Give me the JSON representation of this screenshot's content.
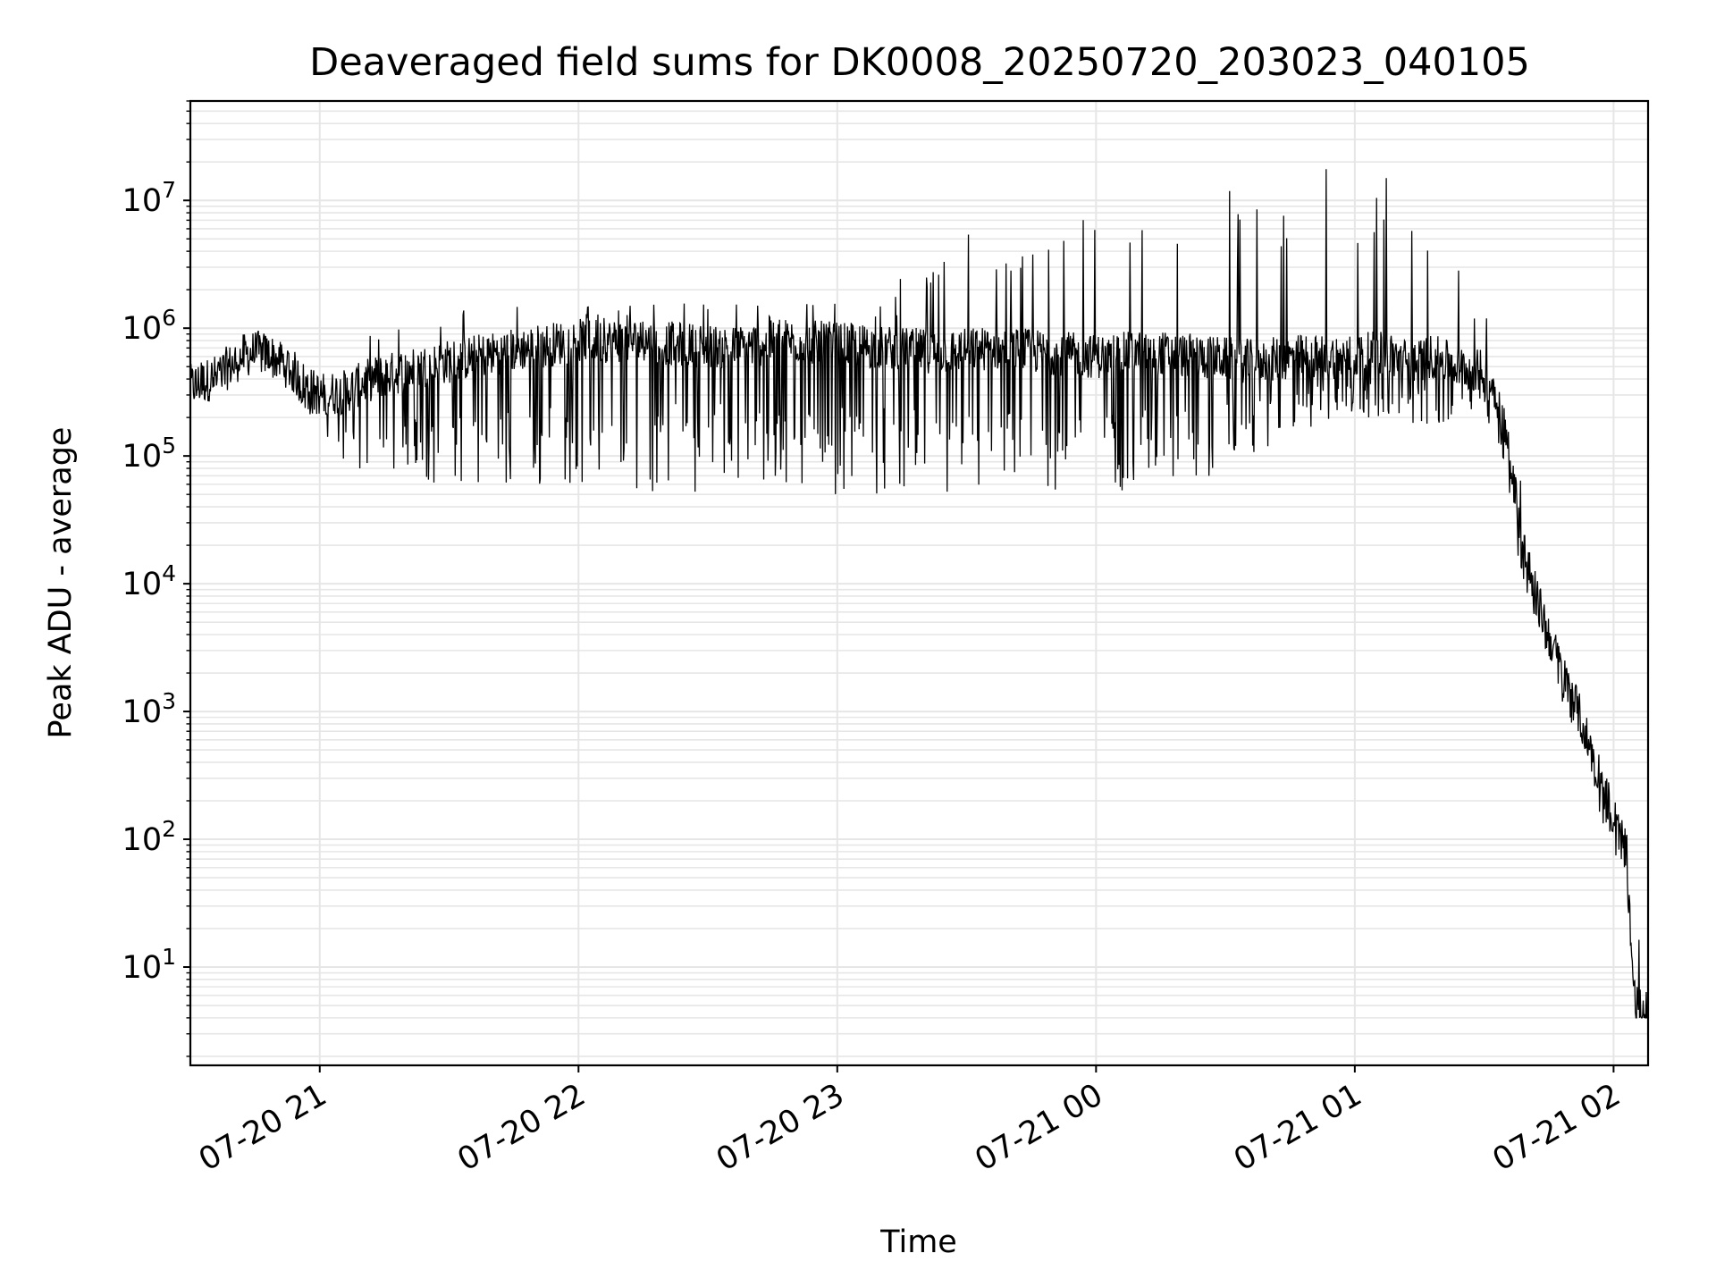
{
  "chart_data": {
    "type": "line",
    "title": "Deaveraged field sums for DK0008_20250720_203023_040105",
    "xlabel": "Time",
    "ylabel": "Peak ADU - average",
    "yscale": "log",
    "xlim": [
      "07-20 20:30",
      "07-21 02:08"
    ],
    "ylim": [
      1.7,
      60000000
    ],
    "grid": true,
    "legend": "none",
    "line_color": "#000000",
    "grid_color": "#e6e6e6",
    "x_ticks": [
      {
        "value": "07-20 21:00",
        "label": "07-20 21"
      },
      {
        "value": "07-20 22:00",
        "label": "07-20 22"
      },
      {
        "value": "07-20 23:00",
        "label": "07-20 23"
      },
      {
        "value": "07-21 00:00",
        "label": "07-21 00"
      },
      {
        "value": "07-21 01:00",
        "label": "07-21 01"
      },
      {
        "value": "07-21 02:00",
        "label": "07-21 02"
      }
    ],
    "y_ticks": [
      {
        "value": 10,
        "base": "10",
        "exp": "1"
      },
      {
        "value": 100,
        "base": "10",
        "exp": "2"
      },
      {
        "value": 1000,
        "base": "10",
        "exp": "3"
      },
      {
        "value": 10000,
        "base": "10",
        "exp": "4"
      },
      {
        "value": 100000,
        "base": "10",
        "exp": "5"
      },
      {
        "value": 1000000,
        "base": "10",
        "exp": "6"
      },
      {
        "value": 10000000,
        "base": "10",
        "exp": "7"
      }
    ],
    "series": [
      {
        "x": [
          "07-20 20:30",
          "07-20 20:33",
          "07-20 20:36",
          "07-20 20:39",
          "07-20 20:42",
          "07-20 20:45",
          "07-20 20:48",
          "07-20 20:51",
          "07-20 20:54",
          "07-20 20:57",
          "07-20 21:00",
          "07-20 21:06",
          "07-20 21:12",
          "07-20 21:18",
          "07-20 21:24",
          "07-20 21:30",
          "07-20 21:36",
          "07-20 21:42",
          "07-20 21:48",
          "07-20 21:54",
          "07-20 22:00",
          "07-20 22:12",
          "07-20 22:24",
          "07-20 22:36",
          "07-20 22:48",
          "07-20 23:00",
          "07-20 23:12",
          "07-20 23:24",
          "07-20 23:36",
          "07-20 23:48",
          "07-21 00:00",
          "07-21 00:12",
          "07-21 00:24",
          "07-21 00:36",
          "07-21 00:48",
          "07-21 01:00",
          "07-21 01:06",
          "07-21 01:12",
          "07-21 01:18",
          "07-21 01:24",
          "07-21 01:30",
          "07-21 01:33",
          "07-21 01:36",
          "07-21 01:39",
          "07-21 01:42",
          "07-21 01:45",
          "07-21 01:48",
          "07-21 01:51",
          "07-21 01:54",
          "07-21 01:57",
          "07-21 02:00",
          "07-21 02:03",
          "07-21 02:05",
          "07-21 02:08"
        ],
        "y": [
          350000,
          380000,
          420000,
          500000,
          600000,
          650000,
          620000,
          550000,
          450000,
          350000,
          300000,
          320000,
          400000,
          450000,
          500000,
          550000,
          600000,
          650000,
          700000,
          750000,
          800000,
          800000,
          750000,
          700000,
          800000,
          750000,
          700000,
          650000,
          700000,
          650000,
          600000,
          650000,
          600000,
          550000,
          600000,
          600000,
          650000,
          550000,
          600000,
          500000,
          450000,
          300000,
          100000,
          20000,
          8000,
          4000,
          2000,
          1200,
          600,
          300,
          150,
          80,
          5,
          4
        ],
        "spike_low": [
          250000,
          300000,
          320000,
          350000,
          500000,
          550000,
          500000,
          450000,
          300000,
          220000,
          180000,
          80000,
          60000,
          70000,
          60000,
          60000,
          60000,
          55000,
          50000,
          60000,
          60000,
          55000,
          50000,
          60000,
          50000,
          50000,
          50000,
          45000,
          50000,
          50000,
          50000,
          55000,
          60000,
          100000,
          150000,
          200000,
          200000,
          180000,
          150000,
          200000,
          150000,
          100000,
          50000,
          8000,
          5000,
          2500,
          1200,
          700,
          400,
          150,
          80,
          40,
          4,
          4
        ],
        "spike_high": [
          700000,
          600000,
          550000,
          600000,
          700000,
          1000000,
          900000,
          800000,
          600000,
          500000,
          500000,
          600000,
          900000,
          1100000,
          1300000,
          1400000,
          1400000,
          1500000,
          1500000,
          1600000,
          1600000,
          1600000,
          1600000,
          1700000,
          1600000,
          1700000,
          2000000,
          5000000,
          10000000,
          15000000,
          18000000,
          18000000,
          18000000,
          15000000,
          18000000,
          22000000,
          25000000,
          28000000,
          5000000,
          3000000,
          2000000,
          700000,
          300000,
          60000,
          20000,
          6000,
          3000,
          1600,
          900,
          500,
          250,
          150,
          30,
          5
        ]
      }
    ]
  }
}
